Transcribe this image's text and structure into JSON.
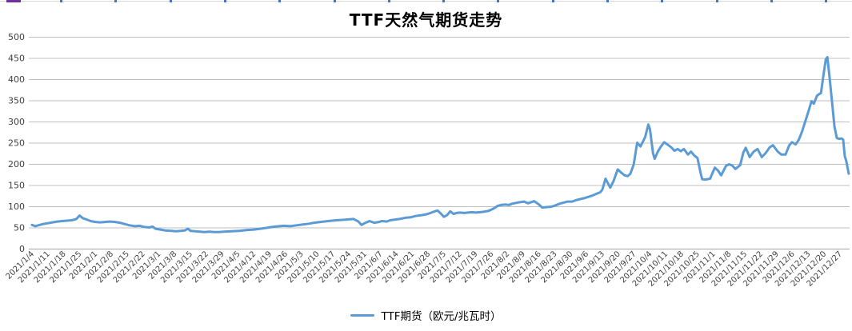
{
  "spreadsheet_edge": {
    "border_color": "#d9d9d9",
    "column_tick_color": "#4472c4",
    "selection_color": "#7030a0"
  },
  "chart_data": {
    "type": "line",
    "title": "TTF天然气期货走势",
    "grid": true,
    "legend": {
      "position": "bottom",
      "label": "TTF期货（欧元/兆瓦时）"
    },
    "y_axis": {
      "min": 0,
      "max": 500,
      "step": 50,
      "ticks": [
        0,
        50,
        100,
        150,
        200,
        250,
        300,
        350,
        400,
        450,
        500
      ],
      "label_color": "#404040",
      "gridline_color": "#bfbfbf",
      "axis_line_color": "#a6a6a6"
    },
    "x_axis": {
      "rotation": -45,
      "label_color": "#404040",
      "labels": [
        "2021/1/4",
        "2021/1/11",
        "2021/1/18",
        "2021/1/25",
        "2021/2/1",
        "2021/2/8",
        "2021/2/15",
        "2021/2/22",
        "2021/3/1",
        "2021/3/8",
        "2021/3/15",
        "2021/3/22",
        "2021/3/29",
        "2021/4/5",
        "2021/4/12",
        "2021/4/19",
        "2021/4/26",
        "2021/5/3",
        "2021/5/10",
        "2021/5/17",
        "2021/5/24",
        "2021/5/31",
        "2021/6/7",
        "2021/6/14",
        "2021/6/21",
        "2021/6/28",
        "2021/7/5",
        "2021/7/12",
        "2021/7/19",
        "2021/7/26",
        "2021/8/2",
        "2021/8/9",
        "2021/8/16",
        "2021/8/23",
        "2021/8/30",
        "2021/9/6",
        "2021/9/13",
        "2021/9/20",
        "2021/9/27",
        "2021/10/4",
        "2021/10/11",
        "2021/10/18",
        "2021/10/25",
        "2021/11/1",
        "2021/11/8",
        "2021/11/15",
        "2021/11/22",
        "2021/11/29",
        "2021/12/6",
        "2021/12/13",
        "2021/12/20",
        "2021/12/27"
      ]
    },
    "series": [
      {
        "name": "TTF期货（欧元/兆瓦时）",
        "color": "#5b9bd5",
        "points_format": "[weeks_since_2021_01_04, value_eur_per_mwh]",
        "points": [
          [
            0,
            57
          ],
          [
            0.2,
            54
          ],
          [
            0.4,
            56
          ],
          [
            0.7,
            59
          ],
          [
            1,
            61
          ],
          [
            1.3,
            63
          ],
          [
            1.6,
            65
          ],
          [
            1.9,
            66
          ],
          [
            2.2,
            67
          ],
          [
            2.5,
            68
          ],
          [
            2.8,
            71
          ],
          [
            3,
            79
          ],
          [
            3.2,
            73
          ],
          [
            3.5,
            69
          ],
          [
            3.7,
            66
          ],
          [
            4,
            64
          ],
          [
            4.3,
            63
          ],
          [
            4.6,
            64
          ],
          [
            4.9,
            65
          ],
          [
            5.25,
            64
          ],
          [
            5.55,
            62
          ],
          [
            5.85,
            59
          ],
          [
            6.15,
            56
          ],
          [
            6.5,
            54
          ],
          [
            6.8,
            55
          ],
          [
            7.1,
            52
          ],
          [
            7.4,
            51
          ],
          [
            7.6,
            53
          ],
          [
            7.8,
            48
          ],
          [
            8.1,
            46
          ],
          [
            8.4,
            44
          ],
          [
            8.8,
            43
          ],
          [
            9.1,
            42
          ],
          [
            9.4,
            43
          ],
          [
            9.65,
            44
          ],
          [
            9.85,
            48
          ],
          [
            10,
            43
          ],
          [
            10.3,
            42
          ],
          [
            10.6,
            41
          ],
          [
            10.9,
            40
          ],
          [
            11.2,
            41
          ],
          [
            11.5,
            40
          ],
          [
            11.8,
            40
          ],
          [
            12.1,
            41
          ],
          [
            12.6,
            42
          ],
          [
            13.1,
            43
          ],
          [
            13.6,
            45
          ],
          [
            14,
            46
          ],
          [
            14.4,
            48
          ],
          [
            14.8,
            50
          ],
          [
            15.15,
            52
          ],
          [
            15.6,
            54
          ],
          [
            15.9,
            55
          ],
          [
            16.3,
            54
          ],
          [
            16.7,
            56
          ],
          [
            17.1,
            58
          ],
          [
            17.5,
            60
          ],
          [
            17.8,
            62
          ],
          [
            18.2,
            64
          ],
          [
            18.7,
            66
          ],
          [
            19.2,
            68
          ],
          [
            19.7,
            69
          ],
          [
            20,
            70
          ],
          [
            20.3,
            71
          ],
          [
            20.6,
            65
          ],
          [
            20.8,
            57
          ],
          [
            21.05,
            62
          ],
          [
            21.3,
            66
          ],
          [
            21.6,
            62
          ],
          [
            21.9,
            64
          ],
          [
            22.1,
            66
          ],
          [
            22.4,
            65
          ],
          [
            22.6,
            68
          ],
          [
            23,
            70
          ],
          [
            23.2,
            71
          ],
          [
            23.6,
            74
          ],
          [
            23.9,
            75
          ],
          [
            24.2,
            78
          ],
          [
            24.6,
            80
          ],
          [
            24.9,
            82
          ],
          [
            25.15,
            85
          ],
          [
            25.35,
            88
          ],
          [
            25.5,
            90
          ],
          [
            25.6,
            91
          ],
          [
            25.8,
            84
          ],
          [
            26,
            76
          ],
          [
            26.2,
            80
          ],
          [
            26.4,
            89
          ],
          [
            26.6,
            83
          ],
          [
            26.8,
            85
          ],
          [
            27,
            86
          ],
          [
            27.3,
            85
          ],
          [
            27.5,
            86
          ],
          [
            27.8,
            87
          ],
          [
            28,
            86
          ],
          [
            28.3,
            87
          ],
          [
            28.5,
            88
          ],
          [
            28.8,
            90
          ],
          [
            29,
            93
          ],
          [
            29.2,
            97
          ],
          [
            29.4,
            102
          ],
          [
            29.6,
            104
          ],
          [
            29.9,
            105
          ],
          [
            30.1,
            104
          ],
          [
            30.3,
            107
          ],
          [
            30.7,
            110
          ],
          [
            31.06,
            112
          ],
          [
            31.3,
            108
          ],
          [
            31.7,
            113
          ],
          [
            32,
            105
          ],
          [
            32.2,
            98
          ],
          [
            32.5,
            99
          ],
          [
            32.8,
            100
          ],
          [
            33.1,
            104
          ],
          [
            33.3,
            107
          ],
          [
            33.6,
            110
          ],
          [
            33.8,
            112
          ],
          [
            34.1,
            112
          ],
          [
            34.3,
            115
          ],
          [
            34.6,
            118
          ],
          [
            34.85,
            120
          ],
          [
            35.1,
            123
          ],
          [
            35.35,
            126
          ],
          [
            35.6,
            130
          ],
          [
            35.86,
            134
          ],
          [
            36,
            140
          ],
          [
            36.2,
            166
          ],
          [
            36.5,
            145
          ],
          [
            36.7,
            160
          ],
          [
            36.97,
            188
          ],
          [
            37.2,
            180
          ],
          [
            37.4,
            174
          ],
          [
            37.6,
            172
          ],
          [
            37.77,
            178
          ],
          [
            37.98,
            200
          ],
          [
            38.13,
            235
          ],
          [
            38.2,
            251
          ],
          [
            38.4,
            242
          ],
          [
            38.5,
            249
          ],
          [
            38.7,
            264
          ],
          [
            38.9,
            294
          ],
          [
            39,
            283
          ],
          [
            39.2,
            226
          ],
          [
            39.3,
            213
          ],
          [
            39.5,
            230
          ],
          [
            39.7,
            242
          ],
          [
            39.9,
            252
          ],
          [
            40.1,
            247
          ],
          [
            40.35,
            240
          ],
          [
            40.55,
            232
          ],
          [
            40.75,
            236
          ],
          [
            40.95,
            231
          ],
          [
            41.15,
            236
          ],
          [
            41.4,
            223
          ],
          [
            41.6,
            230
          ],
          [
            41.8,
            221
          ],
          [
            42,
            215
          ],
          [
            42.2,
            180
          ],
          [
            42.3,
            165
          ],
          [
            42.5,
            164
          ],
          [
            42.8,
            166
          ],
          [
            43.1,
            192
          ],
          [
            43.3,
            185
          ],
          [
            43.5,
            174
          ],
          [
            43.8,
            196
          ],
          [
            44,
            200
          ],
          [
            44.2,
            197
          ],
          [
            44.4,
            189
          ],
          [
            44.7,
            198
          ],
          [
            44.9,
            228
          ],
          [
            45.05,
            239
          ],
          [
            45.3,
            217
          ],
          [
            45.55,
            230
          ],
          [
            45.8,
            236
          ],
          [
            46.06,
            217
          ],
          [
            46.3,
            226
          ],
          [
            46.56,
            240
          ],
          [
            46.77,
            245
          ],
          [
            47.07,
            230
          ],
          [
            47.3,
            223
          ],
          [
            47.56,
            223
          ],
          [
            47.8,
            245
          ],
          [
            47.97,
            252
          ],
          [
            48.2,
            247
          ],
          [
            48.4,
            258
          ],
          [
            48.6,
            277
          ],
          [
            48.8,
            300
          ],
          [
            49,
            324
          ],
          [
            49.2,
            349
          ],
          [
            49.35,
            343
          ],
          [
            49.55,
            362
          ],
          [
            49.7,
            366
          ],
          [
            49.8,
            368
          ],
          [
            49.95,
            409
          ],
          [
            50.1,
            447
          ],
          [
            50.2,
            453
          ],
          [
            50.35,
            403
          ],
          [
            50.5,
            346
          ],
          [
            50.65,
            289
          ],
          [
            50.8,
            262
          ],
          [
            50.95,
            260
          ],
          [
            51.1,
            261
          ],
          [
            51.2,
            258
          ],
          [
            51.3,
            220
          ],
          [
            51.4,
            207
          ],
          [
            51.55,
            178
          ]
        ]
      }
    ]
  }
}
